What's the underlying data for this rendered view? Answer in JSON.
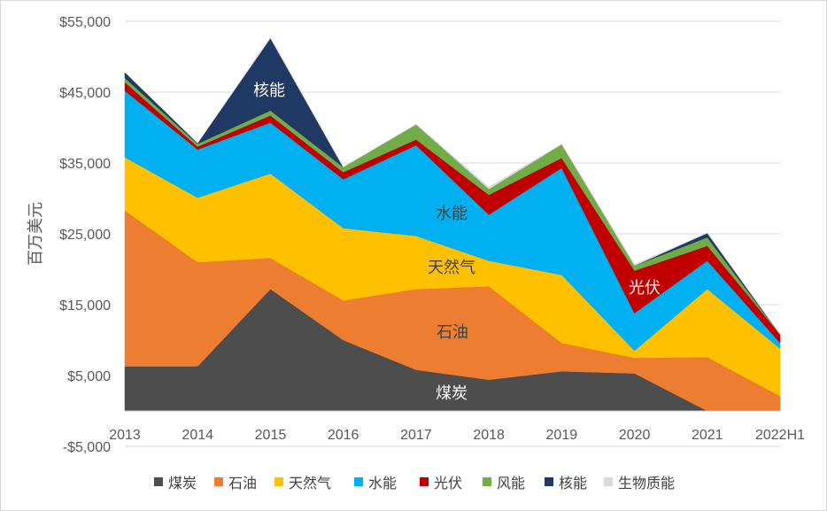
{
  "chart_data": {
    "type": "area",
    "stacked": true,
    "xlabel": "",
    "ylabel": "百万美元",
    "ylim": [
      -5000,
      55000
    ],
    "yticks": [
      -5000,
      5000,
      15000,
      25000,
      35000,
      45000,
      55000
    ],
    "ytick_labels": [
      "-$5,000",
      "$5,000",
      "$15,000",
      "$25,000",
      "$35,000",
      "$45,000",
      "$55,000"
    ],
    "categories": [
      "2013",
      "2014",
      "2015",
      "2016",
      "2017",
      "2018",
      "2019",
      "2020",
      "2021",
      "2022H1"
    ],
    "series": [
      {
        "name": "煤炭",
        "color": "#4d4d4d",
        "values": [
          6300,
          6300,
          17200,
          10000,
          5800,
          4400,
          5600,
          5300,
          0,
          0
        ]
      },
      {
        "name": "石油",
        "color": "#ed7d31",
        "values": [
          22000,
          14700,
          4400,
          5600,
          11400,
          13200,
          4000,
          2200,
          7600,
          2100
        ]
      },
      {
        "name": "天然气",
        "color": "#ffc000",
        "values": [
          7500,
          9100,
          11900,
          10200,
          7500,
          3600,
          9600,
          1000,
          9600,
          6700
        ]
      },
      {
        "name": "水能",
        "color": "#00b0f0",
        "values": [
          9400,
          6800,
          7200,
          6900,
          12800,
          6500,
          15100,
          5300,
          4000,
          800
        ]
      },
      {
        "name": "光伏",
        "color": "#c00000",
        "values": [
          1200,
          400,
          1000,
          1000,
          800,
          2800,
          1400,
          6000,
          2100,
          1200
        ]
      },
      {
        "name": "风能",
        "color": "#70ad47",
        "values": [
          600,
          400,
          700,
          700,
          2100,
          800,
          1900,
          700,
          1200,
          0
        ]
      },
      {
        "name": "核能",
        "color": "#1f3864",
        "values": [
          800,
          100,
          10200,
          0,
          0,
          0,
          0,
          0,
          600,
          0
        ]
      },
      {
        "name": "生物质能",
        "color": "#d9d9d9",
        "values": [
          0,
          0,
          200,
          0,
          100,
          300,
          100,
          200,
          0,
          0
        ]
      }
    ],
    "annotations": [
      {
        "text": "核能",
        "series": "核能"
      },
      {
        "text": "水能",
        "series": "水能"
      },
      {
        "text": "天然气",
        "series": "天然气"
      },
      {
        "text": "光伏",
        "series": "光伏"
      },
      {
        "text": "石油",
        "series": "石油"
      },
      {
        "text": "煤炭",
        "series": "煤炭"
      }
    ],
    "legend_position": "bottom"
  }
}
